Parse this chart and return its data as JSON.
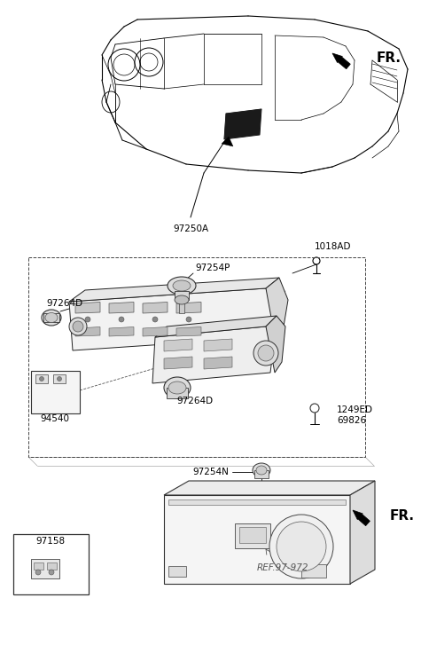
{
  "bg_color": "#ffffff",
  "lc": "#000000",
  "fig_width": 4.75,
  "fig_height": 7.27,
  "labels": {
    "FR_top": "FR.",
    "FR_bottom": "FR.",
    "97250A": "97250A",
    "1018AD": "1018AD",
    "97254P": "97254P",
    "97264D_left": "97264D",
    "97264D_bot": "97264D",
    "94540": "94540",
    "1249ED": "1249ED",
    "69826": "69826",
    "97254N": "97254N",
    "97158": "97158",
    "REF_972": "REF.97-972"
  }
}
